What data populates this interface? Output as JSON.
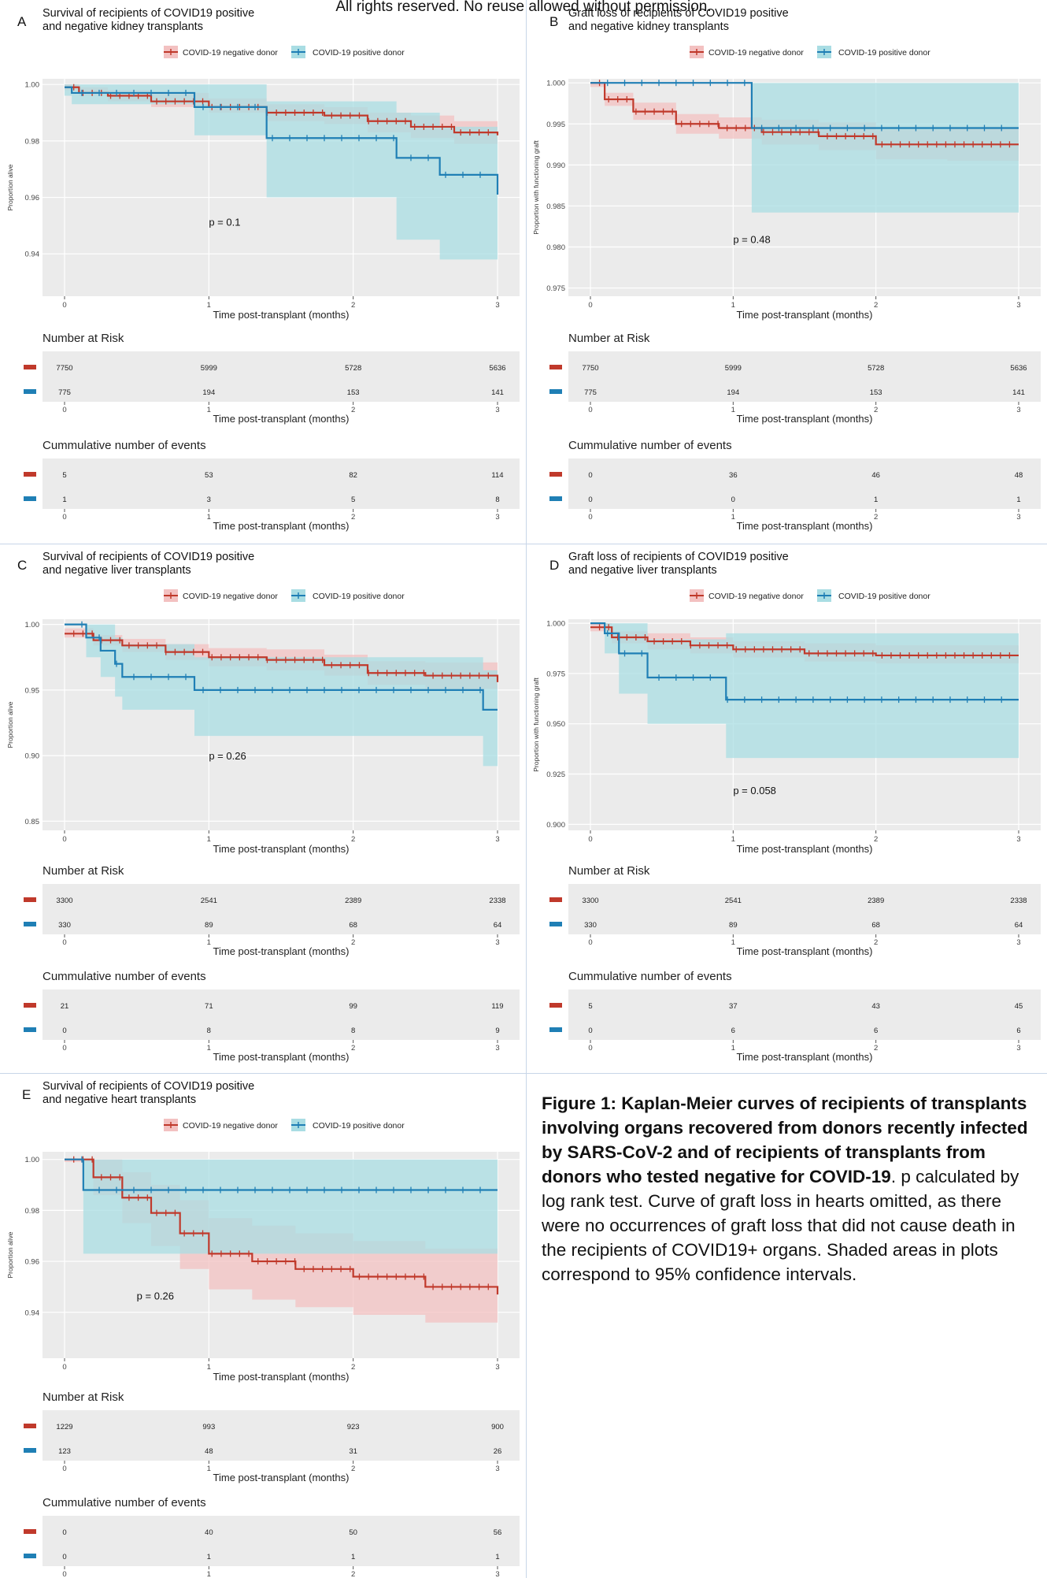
{
  "notice": "All rights reserved. No reuse allowed without permission.",
  "common": {
    "legend_neg": "COVID-19 negative donor",
    "legend_pos": "COVID-19 positive donor",
    "xlabel": "Time post-transplant (months)",
    "risk_title": "Number at Risk",
    "events_title": "Cummulative number of events",
    "xticks": [
      "0",
      "1",
      "2",
      "3"
    ],
    "colors": {
      "neg": "#c0392b",
      "pos": "#1f7fb5",
      "neg_band": "#f3c1c1",
      "pos_band": "#a9dde3",
      "panel_bg": "#ebebeb",
      "grid": "#ffffff"
    }
  },
  "caption": {
    "bold": "Figure 1: Kaplan-Meier curves of recipients of transplants involving organs recovered from donors recently infected by SARS-CoV-2 and of recipients of transplants from donors who tested negative for COVID-19",
    "rest": ". p calculated by log rank test. Curve of graft loss in hearts omitted, as there were no occurrences of graft loss that did not cause death in the recipients of COVID19+ organs. Shaded areas in plots correspond to 95% confidence intervals."
  },
  "chart_data": [
    {
      "letter": "A",
      "type": "line",
      "title_line1": "Survival of recipients of COVID19 positive",
      "title_line2": " and negative kidney transplants",
      "ylabel": "Proportion alive",
      "ylim": [
        0.925,
        1.002
      ],
      "yticks": [
        1.0,
        0.98,
        0.96,
        0.94
      ],
      "ytick_labels": [
        "1.00",
        "0.98",
        "0.96",
        "0.94"
      ],
      "xlim": [
        0,
        3
      ],
      "p_text": "p = 0.1",
      "p_pos": [
        1.0,
        0.95
      ],
      "series": [
        {
          "name": "COVID-19 negative donor",
          "x": [
            0,
            0.1,
            0.3,
            0.6,
            1.0,
            1.4,
            1.8,
            2.1,
            2.4,
            2.7,
            3.0
          ],
          "y": [
            0.999,
            0.997,
            0.996,
            0.994,
            0.992,
            0.99,
            0.989,
            0.987,
            0.985,
            0.983,
            0.982
          ],
          "lo": [
            0.998,
            0.996,
            0.994,
            0.992,
            0.99,
            0.987,
            0.986,
            0.983,
            0.981,
            0.979,
            0.977
          ],
          "hi": [
            1.0,
            0.999,
            0.998,
            0.997,
            0.995,
            0.993,
            0.992,
            0.99,
            0.989,
            0.987,
            0.986
          ]
        },
        {
          "name": "COVID-19 positive donor",
          "x": [
            0,
            0.05,
            0.9,
            1.4,
            2.3,
            2.6,
            3.0
          ],
          "y": [
            0.999,
            0.997,
            0.992,
            0.981,
            0.974,
            0.968,
            0.961
          ],
          "lo": [
            0.996,
            0.993,
            0.982,
            0.96,
            0.945,
            0.938,
            0.932
          ],
          "hi": [
            1.0,
            1.0,
            1.0,
            0.994,
            0.99,
            0.985,
            0.983
          ]
        }
      ],
      "risk": {
        "neg": [
          "7750",
          "5999",
          "5728",
          "5636"
        ],
        "pos": [
          "775",
          "194",
          "153",
          "141"
        ]
      },
      "events": {
        "neg": [
          "5",
          "53",
          "82",
          "114"
        ],
        "pos": [
          "1",
          "3",
          "5",
          "8"
        ]
      }
    },
    {
      "letter": "B",
      "type": "line",
      "title_line1": "Graft loss of recipients of COVID19 positive",
      "title_line2": " and negative kidney transplants",
      "ylabel": "Proportion with functioning graft",
      "ylim": [
        0.974,
        1.0005
      ],
      "yticks": [
        1.0,
        0.995,
        0.99,
        0.985,
        0.98,
        0.975
      ],
      "ytick_labels": [
        "1.000",
        "0.995",
        "0.990",
        "0.985",
        "0.980",
        "0.975"
      ],
      "xlim": [
        0,
        3
      ],
      "p_text": "p = 0.48",
      "p_pos": [
        1.0,
        0.9805
      ],
      "series": [
        {
          "name": "COVID-19 negative donor",
          "x": [
            0,
            0.1,
            0.3,
            0.6,
            0.9,
            1.2,
            1.6,
            2.0,
            2.5,
            3.0
          ],
          "y": [
            1.0,
            0.998,
            0.9965,
            0.995,
            0.9945,
            0.994,
            0.9935,
            0.9925,
            0.9925,
            0.9925
          ],
          "lo": [
            0.9995,
            0.9972,
            0.9955,
            0.9938,
            0.9932,
            0.9925,
            0.9918,
            0.9907,
            0.9905,
            0.9902
          ],
          "hi": [
            1.0,
            0.9988,
            0.9976,
            0.9962,
            0.9958,
            0.9955,
            0.9952,
            0.9943,
            0.9945,
            0.9948
          ]
        },
        {
          "name": "COVID-19 positive donor",
          "x": [
            0,
            1.13,
            3.0
          ],
          "y": [
            1.0,
            0.9945,
            0.9945
          ],
          "lo": [
            1.0,
            0.9842,
            0.9842
          ],
          "hi": [
            1.0,
            1.0,
            1.0
          ]
        }
      ],
      "risk": {
        "neg": [
          "7750",
          "5999",
          "5728",
          "5636"
        ],
        "pos": [
          "775",
          "194",
          "153",
          "141"
        ]
      },
      "events": {
        "neg": [
          "0",
          "36",
          "46",
          "48"
        ],
        "pos": [
          "0",
          "0",
          "1",
          "1"
        ]
      }
    },
    {
      "letter": "C",
      "type": "line",
      "title_line1": "Survival of recipients of COVID19 positive",
      "title_line2": " and negative liver transplants",
      "ylabel": "Proportion alive",
      "ylim": [
        0.843,
        1.004
      ],
      "yticks": [
        1.0,
        0.95,
        0.9,
        0.85
      ],
      "ytick_labels": [
        "1.00",
        "0.95",
        "0.90",
        "0.85"
      ],
      "xlim": [
        0,
        3
      ],
      "p_text": "p = 0.26",
      "p_pos": [
        1.0,
        0.897
      ],
      "series": [
        {
          "name": "COVID-19 negative donor",
          "x": [
            0,
            0.2,
            0.4,
            0.7,
            1.0,
            1.4,
            1.8,
            2.1,
            2.5,
            3.0
          ],
          "y": [
            0.993,
            0.988,
            0.984,
            0.979,
            0.975,
            0.973,
            0.969,
            0.963,
            0.961,
            0.956
          ],
          "lo": [
            0.99,
            0.984,
            0.979,
            0.973,
            0.968,
            0.965,
            0.961,
            0.954,
            0.951,
            0.944
          ],
          "hi": [
            0.997,
            0.992,
            0.989,
            0.985,
            0.982,
            0.981,
            0.977,
            0.972,
            0.971,
            0.968
          ]
        },
        {
          "name": "COVID-19 positive donor",
          "x": [
            0,
            0.15,
            0.25,
            0.35,
            0.4,
            0.9,
            2.9,
            3.0
          ],
          "y": [
            1.0,
            0.99,
            0.98,
            0.97,
            0.96,
            0.95,
            0.935,
            0.935
          ],
          "lo": [
            1.0,
            0.975,
            0.96,
            0.945,
            0.935,
            0.915,
            0.892,
            0.892
          ],
          "hi": [
            1.0,
            1.0,
            1.0,
            0.99,
            0.985,
            0.975,
            0.965,
            0.965
          ]
        }
      ],
      "risk": {
        "neg": [
          "3300",
          "2541",
          "2389",
          "2338"
        ],
        "pos": [
          "330",
          "89",
          "68",
          "64"
        ]
      },
      "events": {
        "neg": [
          "21",
          "71",
          "99",
          "119"
        ],
        "pos": [
          "0",
          "8",
          "8",
          "9"
        ]
      }
    },
    {
      "letter": "D",
      "type": "line",
      "title_line1": "Graft loss of recipients of COVID19 positive",
      "title_line2": " and negative liver transplants",
      "ylabel": "Proportion with functioning graft",
      "ylim": [
        0.897,
        1.002
      ],
      "yticks": [
        1.0,
        0.975,
        0.95,
        0.925,
        0.9
      ],
      "ytick_labels": [
        "1.000",
        "0.975",
        "0.950",
        "0.925",
        "0.900"
      ],
      "xlim": [
        0,
        3
      ],
      "p_text": "p = 0.058",
      "p_pos": [
        1.0,
        0.915
      ],
      "series": [
        {
          "name": "COVID-19 negative donor",
          "x": [
            0,
            0.15,
            0.4,
            0.7,
            1.0,
            1.5,
            2.0,
            3.0
          ],
          "y": [
            0.998,
            0.993,
            0.991,
            0.989,
            0.987,
            0.985,
            0.984,
            0.984
          ],
          "lo": [
            0.996,
            0.99,
            0.987,
            0.985,
            0.983,
            0.981,
            0.98,
            0.979
          ],
          "hi": [
            1.0,
            0.996,
            0.995,
            0.993,
            0.991,
            0.99,
            0.989,
            0.989
          ]
        },
        {
          "name": "COVID-19 positive donor",
          "x": [
            0,
            0.1,
            0.2,
            0.4,
            0.95,
            3.0
          ],
          "y": [
            1.0,
            0.995,
            0.985,
            0.973,
            0.962,
            0.962
          ],
          "lo": [
            1.0,
            0.985,
            0.965,
            0.95,
            0.933,
            0.933
          ],
          "hi": [
            1.0,
            1.0,
            1.0,
            0.992,
            0.995,
            0.995
          ]
        }
      ],
      "risk": {
        "neg": [
          "3300",
          "2541",
          "2389",
          "2338"
        ],
        "pos": [
          "330",
          "89",
          "68",
          "64"
        ]
      },
      "events": {
        "neg": [
          "5",
          "37",
          "43",
          "45"
        ],
        "pos": [
          "0",
          "6",
          "6",
          "6"
        ]
      }
    },
    {
      "letter": "E",
      "type": "line",
      "title_line1": "Survival of recipients of COVID19 positive",
      "title_line2": " and negative heart transplants",
      "ylabel": "Proportion alive",
      "ylim": [
        0.922,
        1.003
      ],
      "yticks": [
        1.0,
        0.98,
        0.96,
        0.94
      ],
      "ytick_labels": [
        "1.00",
        "0.98",
        "0.96",
        "0.94"
      ],
      "xlim": [
        0,
        3
      ],
      "p_text": "p = 0.26",
      "p_pos": [
        0.5,
        0.945
      ],
      "series": [
        {
          "name": "COVID-19 negative donor",
          "x": [
            0,
            0.2,
            0.4,
            0.6,
            0.8,
            1.0,
            1.3,
            1.6,
            2.0,
            2.5,
            3.0
          ],
          "y": [
            1.0,
            0.993,
            0.985,
            0.979,
            0.971,
            0.963,
            0.96,
            0.957,
            0.954,
            0.95,
            0.947
          ],
          "lo": [
            0.999,
            0.986,
            0.975,
            0.966,
            0.957,
            0.949,
            0.945,
            0.942,
            0.939,
            0.936,
            0.933
          ],
          "hi": [
            1.0,
            1.0,
            0.995,
            0.99,
            0.984,
            0.977,
            0.974,
            0.971,
            0.968,
            0.965,
            0.962
          ]
        },
        {
          "name": "COVID-19 positive donor",
          "x": [
            0,
            0.13,
            3.0
          ],
          "y": [
            1.0,
            0.988,
            0.988
          ],
          "lo": [
            1.0,
            0.963,
            0.963
          ],
          "hi": [
            1.0,
            1.0,
            1.0
          ]
        }
      ],
      "risk": {
        "neg": [
          "1229",
          "993",
          "923",
          "900"
        ],
        "pos": [
          "123",
          "48",
          "31",
          "26"
        ]
      },
      "events": {
        "neg": [
          "0",
          "40",
          "50",
          "56"
        ],
        "pos": [
          "0",
          "1",
          "1",
          "1"
        ]
      }
    }
  ]
}
